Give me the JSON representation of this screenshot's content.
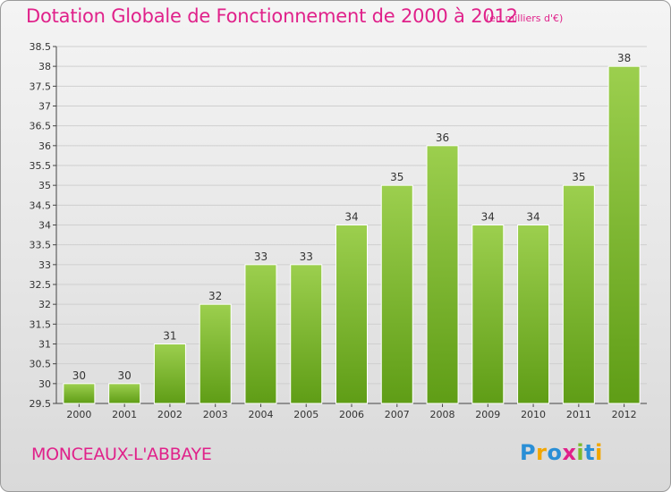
{
  "title": "Dotation Globale de Fonctionnement de 2000 à 2012",
  "unit_note": "(en milliers d'€)",
  "commune": "MONCEAUX-L'ABBAYE",
  "logo": {
    "text": "Proxiti",
    "letters": [
      {
        "char": "P",
        "color": "#2a8fd6"
      },
      {
        "char": "r",
        "color": "#f2a600"
      },
      {
        "char": "o",
        "color": "#2a8fd6"
      },
      {
        "char": "x",
        "color": "#e0218a"
      },
      {
        "char": "i",
        "color": "#7dba2c"
      },
      {
        "char": "t",
        "color": "#2a8fd6"
      },
      {
        "char": "i",
        "color": "#f2a600"
      }
    ]
  },
  "colors": {
    "accent": "#e0218a",
    "bar_top": "#9ccf4e",
    "bar_bottom": "#5f9d16"
  },
  "chart_data": {
    "type": "bar",
    "categories": [
      "2000",
      "2001",
      "2002",
      "2003",
      "2004",
      "2005",
      "2006",
      "2007",
      "2008",
      "2009",
      "2010",
      "2011",
      "2012"
    ],
    "values": [
      30,
      30,
      31,
      32,
      33,
      33,
      34,
      35,
      36,
      34,
      34,
      35,
      38
    ],
    "ylim": [
      29.5,
      38.5
    ],
    "yticks": [
      29.5,
      30,
      30.5,
      31,
      31.5,
      32,
      32.5,
      33,
      33.5,
      34,
      34.5,
      35,
      35.5,
      36,
      36.5,
      37,
      37.5,
      38,
      38.5
    ],
    "grid": true,
    "xlabel": "",
    "ylabel": ""
  }
}
